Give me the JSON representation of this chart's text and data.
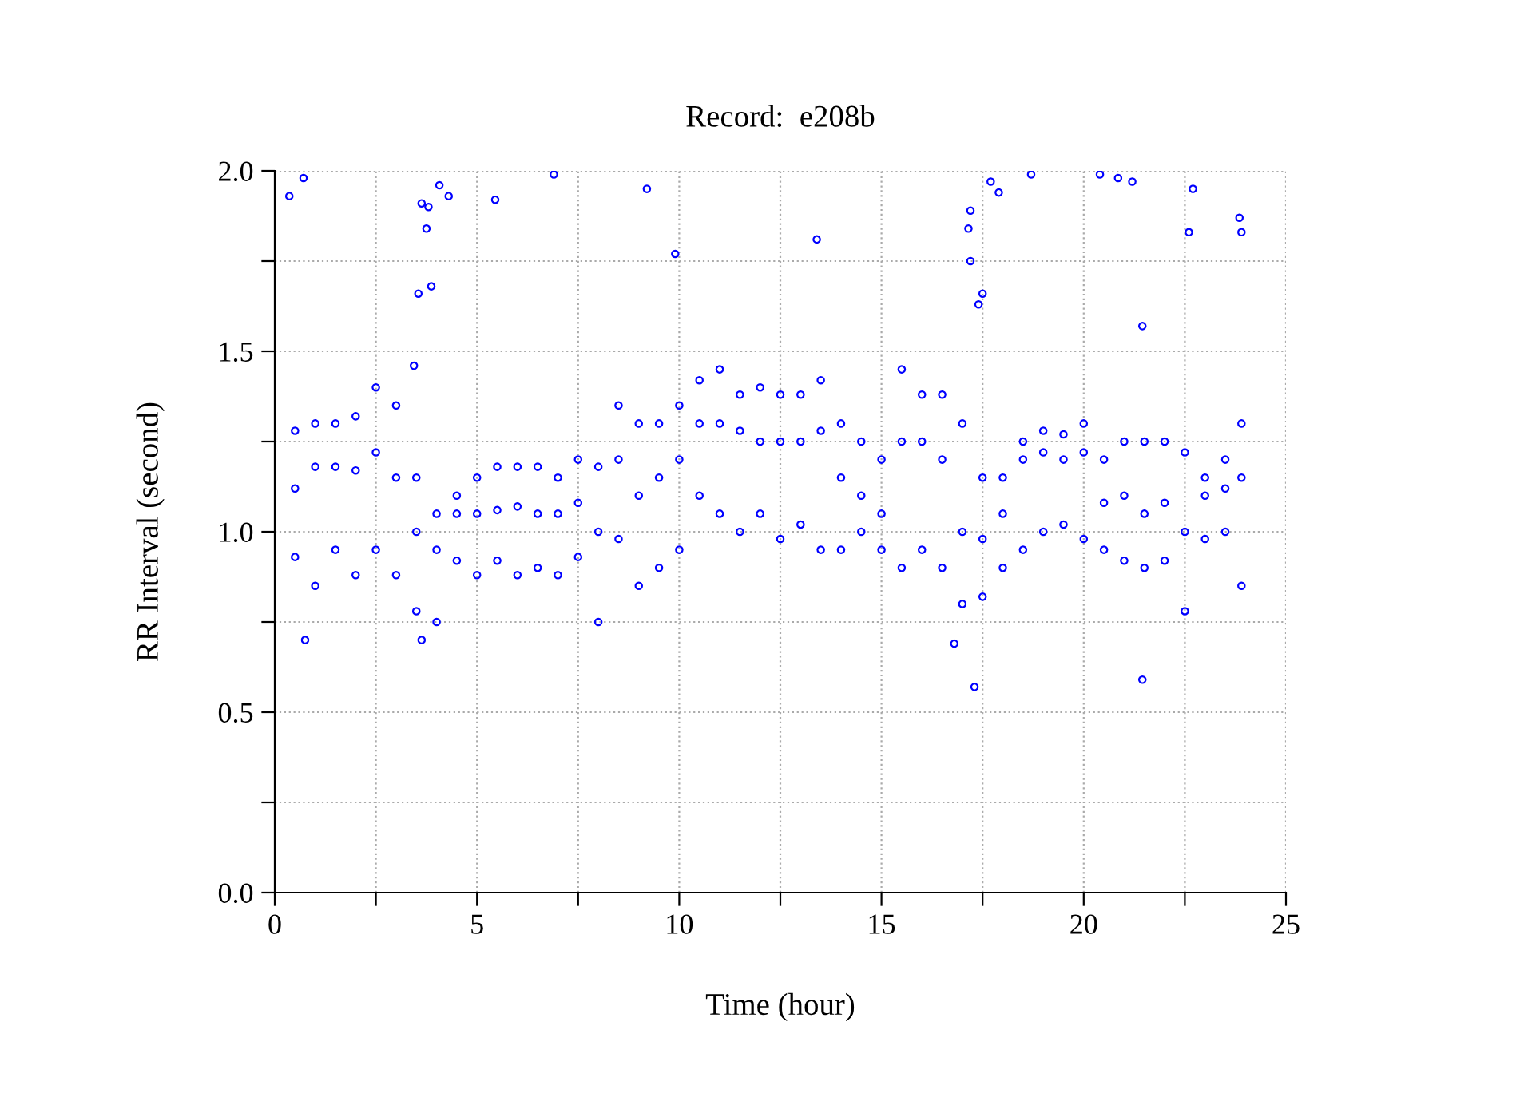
{
  "chart_data": {
    "type": "scatter",
    "title": "Record:  e208b",
    "xlabel": "Time (hour)",
    "ylabel": "RR Interval (second)",
    "xlim": [
      0,
      25
    ],
    "ylim": [
      0,
      2
    ],
    "xticks": [
      0,
      {
        "value": 2.5,
        "label": null
      },
      5,
      {
        "value": 7.5,
        "label": null
      },
      10,
      {
        "value": 12.5,
        "label": null
      },
      15,
      {
        "value": 17.5,
        "label": null
      },
      20,
      {
        "value": 22.5,
        "label": null
      },
      25
    ],
    "yticks": [
      {
        "value": 0,
        "label": "0.0"
      },
      {
        "value": 0.25,
        "label": null
      },
      {
        "value": 0.5,
        "label": "0.5"
      },
      {
        "value": 0.75,
        "label": null
      },
      {
        "value": 1,
        "label": "1.0"
      },
      {
        "value": 1.25,
        "label": null
      },
      {
        "value": 1.5,
        "label": "1.5"
      },
      {
        "value": 1.75,
        "label": null
      },
      {
        "value": 2,
        "label": "2.0"
      }
    ],
    "grid": true,
    "marker": "circle",
    "series": [
      {
        "color": "#0000ff",
        "x": [
          0.5,
          0.5,
          0.5,
          1.0,
          1.0,
          1.0,
          1.5,
          1.5,
          1.5,
          2.0,
          2.0,
          2.0,
          2.5,
          2.5,
          2.5,
          3.0,
          3.0,
          3.0,
          3.5,
          3.5,
          3.5,
          4.0,
          4.0,
          4.0,
          4.5,
          4.5,
          4.5,
          5.0,
          5.0,
          5.0,
          5.5,
          5.5,
          5.5,
          6.0,
          6.0,
          6.0,
          6.5,
          6.5,
          6.5,
          7.0,
          7.0,
          7.0,
          7.5,
          7.5,
          7.5,
          8.0,
          8.0,
          8.0,
          8.5,
          8.5,
          8.5,
          9.0,
          9.0,
          9.0,
          9.5,
          9.5,
          9.5,
          10.0,
          10.0,
          10.0,
          10.5,
          10.5,
          10.5,
          11.0,
          11.0,
          11.0,
          11.5,
          11.5,
          11.5,
          12.0,
          12.0,
          12.0,
          12.5,
          12.5,
          12.5,
          13.0,
          13.0,
          13.0,
          13.5,
          13.5,
          13.5,
          14.0,
          14.0,
          14.0,
          14.5,
          14.5,
          14.5,
          15.0,
          15.0,
          15.0,
          15.5,
          15.5,
          15.5,
          16.0,
          16.0,
          16.0,
          16.5,
          16.5,
          16.5,
          17.0,
          17.0,
          17.0,
          17.5,
          17.5,
          17.5,
          18.0,
          18.0,
          18.0,
          18.5,
          18.5,
          18.5,
          19.0,
          19.0,
          19.0,
          19.5,
          19.5,
          19.5,
          20.0,
          20.0,
          20.0,
          20.5,
          20.5,
          20.5,
          21.0,
          21.0,
          21.0,
          21.5,
          21.5,
          21.5,
          22.0,
          22.0,
          22.0,
          22.5,
          22.5,
          22.5,
          23.0,
          23.0,
          23.0,
          23.5,
          23.5,
          23.5,
          23.9,
          23.9,
          23.9,
          0.36,
          0.71,
          0.75,
          3.63,
          3.75,
          3.8,
          3.55,
          3.87,
          4.07,
          4.3,
          3.44,
          3.63,
          5.45,
          6.9,
          9.2,
          9.9,
          13.4,
          17.2,
          17.15,
          17.2,
          17.4,
          17.5,
          17.7,
          17.9,
          18.7,
          20.4,
          20.85,
          21.2,
          21.45,
          21.45,
          22.7,
          22.6,
          23.85,
          23.9,
          17.3,
          16.8
        ],
        "values": [
          1.28,
          1.12,
          0.93,
          1.3,
          1.18,
          0.85,
          1.3,
          1.18,
          0.95,
          1.32,
          1.17,
          0.88,
          1.4,
          1.22,
          0.95,
          1.35,
          1.15,
          0.88,
          1.15,
          1.0,
          0.78,
          1.05,
          0.95,
          0.75,
          1.1,
          1.05,
          0.92,
          1.15,
          1.05,
          0.88,
          1.18,
          1.06,
          0.92,
          1.18,
          1.07,
          0.88,
          1.18,
          1.05,
          0.9,
          1.15,
          1.05,
          0.88,
          1.2,
          1.08,
          0.93,
          1.18,
          1.0,
          0.75,
          1.35,
          1.2,
          0.98,
          1.3,
          1.1,
          0.85,
          1.3,
          1.15,
          0.9,
          1.35,
          1.2,
          0.95,
          1.42,
          1.3,
          1.1,
          1.45,
          1.3,
          1.05,
          1.38,
          1.28,
          1.0,
          1.4,
          1.25,
          1.05,
          1.38,
          1.25,
          0.98,
          1.38,
          1.25,
          1.02,
          1.42,
          1.28,
          0.95,
          1.3,
          1.15,
          0.95,
          1.25,
          1.1,
          1.0,
          1.2,
          1.05,
          0.95,
          1.45,
          1.25,
          0.9,
          1.38,
          1.25,
          0.95,
          1.38,
          1.2,
          0.9,
          1.3,
          1.0,
          0.8,
          1.15,
          0.98,
          0.82,
          1.15,
          1.05,
          0.9,
          1.25,
          1.2,
          0.95,
          1.28,
          1.22,
          1.0,
          1.27,
          1.2,
          1.02,
          1.3,
          1.22,
          0.98,
          1.2,
          1.08,
          0.95,
          1.25,
          1.1,
          0.92,
          1.25,
          1.05,
          0.9,
          1.25,
          1.08,
          0.92,
          1.22,
          1.0,
          0.78,
          1.15,
          1.1,
          0.98,
          1.2,
          1.12,
          1.0,
          1.3,
          1.15,
          0.85,
          1.93,
          1.98,
          0.7,
          1.91,
          1.84,
          1.9,
          1.66,
          1.68,
          1.96,
          1.93,
          1.46,
          0.7,
          1.92,
          1.99,
          1.95,
          1.77,
          1.81,
          1.89,
          1.84,
          1.75,
          1.63,
          1.66,
          1.97,
          1.94,
          1.99,
          1.99,
          1.98,
          1.97,
          1.57,
          0.59,
          1.95,
          1.83,
          1.87,
          1.83,
          0.57,
          0.69
        ]
      }
    ]
  }
}
